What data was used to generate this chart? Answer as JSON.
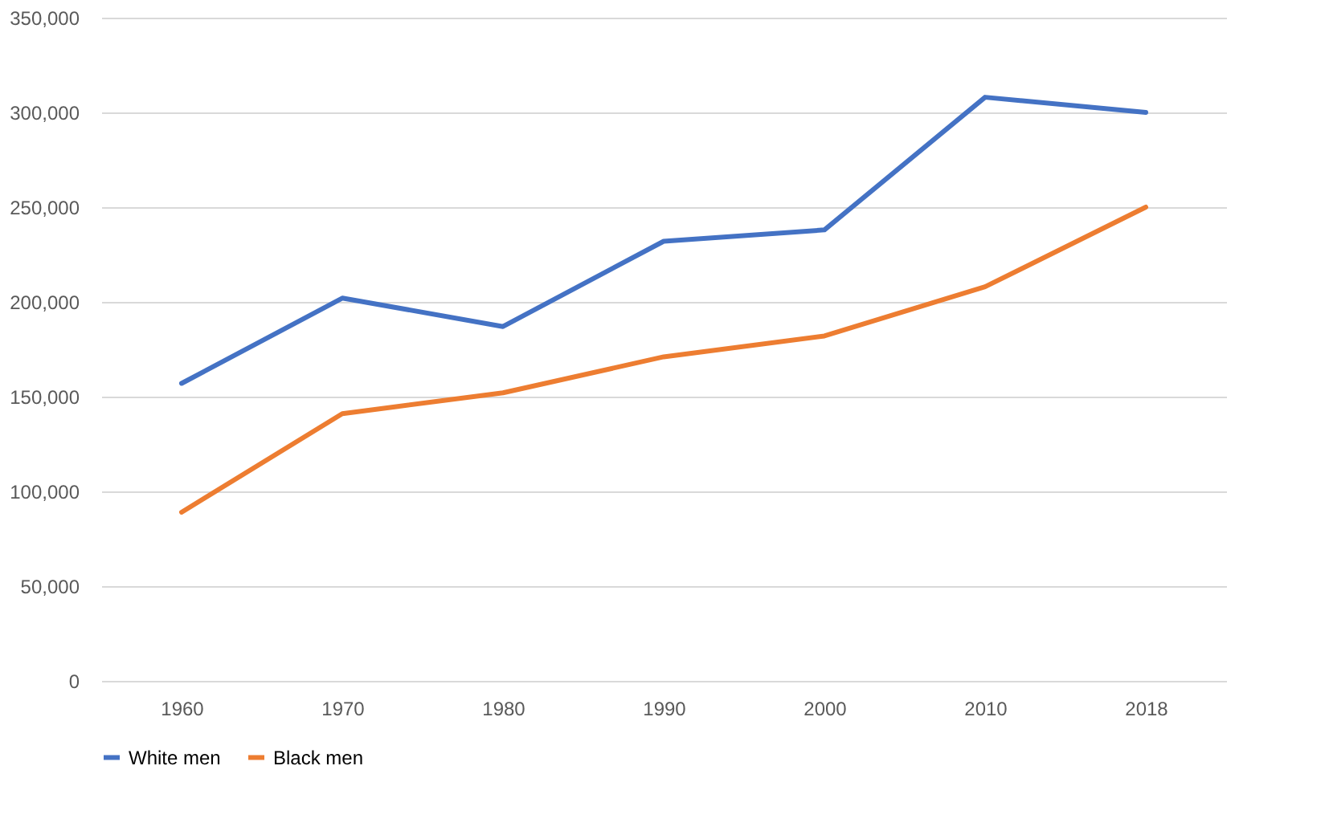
{
  "chart_data": {
    "type": "line",
    "categories": [
      "1960",
      "1970",
      "1980",
      "1990",
      "2000",
      "2010",
      "2018"
    ],
    "series": [
      {
        "name": "White men",
        "color": "#4472c4",
        "values": [
          157000,
          202000,
          187000,
          232000,
          238000,
          308000,
          300000
        ]
      },
      {
        "name": "Black men",
        "color": "#ed7d31",
        "values": [
          89000,
          141000,
          152000,
          171000,
          182000,
          208000,
          250000
        ]
      }
    ],
    "ylim": [
      0,
      350000
    ],
    "yticks": [
      0,
      {
        "value": 50000,
        "label": "50,000"
      },
      {
        "value": 100000,
        "label": "100,000"
      },
      {
        "value": 150000,
        "label": "150,000"
      },
      {
        "value": 200000,
        "label": "200,000"
      },
      {
        "value": 250000,
        "label": "250,000"
      },
      {
        "value": 300000,
        "label": "300,000"
      },
      {
        "value": 350000,
        "label": "350,000"
      }
    ],
    "grid": "y",
    "legend": "bottom"
  }
}
